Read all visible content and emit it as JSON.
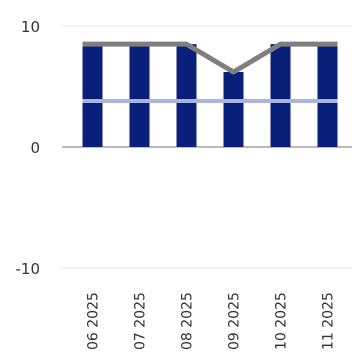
{
  "chart_data": {
    "type": "bar",
    "categories": [
      "06 2025",
      "07 2025",
      "08 2025",
      "09 2025",
      "10 2025",
      "11 2025"
    ],
    "series": [
      {
        "type": "bar",
        "values": [
          8.5,
          8.5,
          8.5,
          6.2,
          8.5,
          8.5
        ],
        "color": "#0a1f7a"
      },
      {
        "type": "line",
        "values": [
          8.5,
          8.5,
          8.5,
          6.2,
          8.5,
          8.5
        ],
        "color": "#7f7f7f"
      },
      {
        "type": "line",
        "values": [
          3.8,
          3.8,
          3.8,
          3.8,
          3.8,
          3.8
        ],
        "color": "#aab4dc"
      }
    ],
    "ylim": [
      -10,
      10
    ],
    "yticks": [
      "10",
      "0",
      "-10"
    ],
    "ytick_values": [
      10,
      0,
      -10
    ],
    "grid": true,
    "bar_pattern": "vertical-stripes",
    "stripe_color": "#ffffff",
    "title": "",
    "xlabel": "",
    "ylabel": ""
  }
}
